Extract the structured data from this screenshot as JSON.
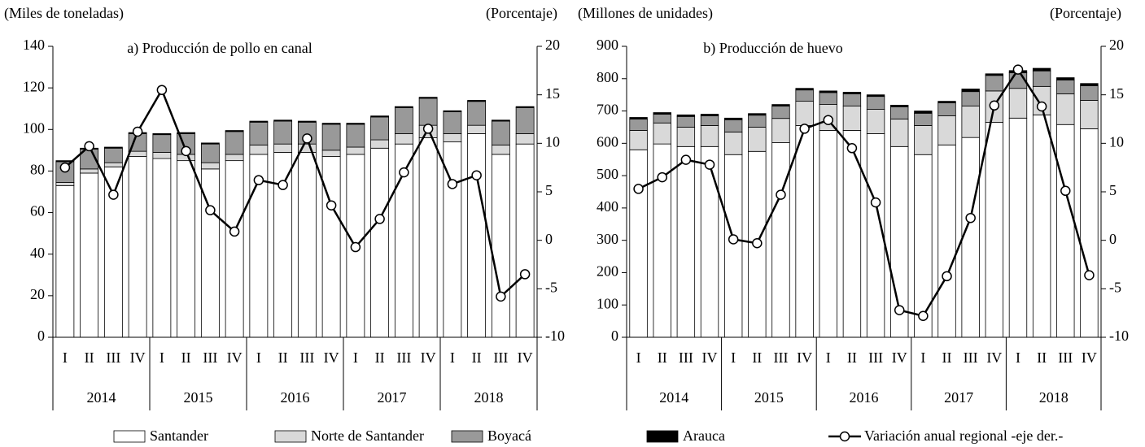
{
  "chart_data": [
    {
      "type": "bar",
      "stacked": true,
      "title": "a) Producción de pollo en canal",
      "y_label": "(Miles de toneladas)",
      "y2_label": "(Porcentaje)",
      "categories": [
        "I",
        "II",
        "III",
        "IV",
        "I",
        "II",
        "III",
        "IV",
        "I",
        "II",
        "III",
        "IV",
        "I",
        "II",
        "III",
        "IV",
        "I",
        "II",
        "III",
        "IV"
      ],
      "groups": [
        "2014",
        "2015",
        "2016",
        "2017",
        "2018"
      ],
      "ylim": [
        0,
        140
      ],
      "yticks": [
        0,
        20,
        40,
        60,
        80,
        100,
        120,
        140
      ],
      "y2lim": [
        -10,
        20
      ],
      "y2ticks": [
        -10,
        -5,
        0,
        5,
        10,
        15,
        20
      ],
      "series": [
        {
          "name": "Santander",
          "color": "#ffffff",
          "values": [
            73,
            79,
            82,
            87,
            86,
            85,
            81,
            85,
            88,
            89,
            89,
            87,
            88,
            91,
            93,
            96,
            94,
            98,
            88,
            93
          ]
        },
        {
          "name": "Norte de Santander",
          "color": "#d9d9d9",
          "values": [
            1.5,
            2,
            2,
            2.5,
            3,
            3,
            3,
            3,
            4.5,
            4,
            4,
            3,
            3.5,
            4,
            5,
            6,
            4,
            4,
            4.5,
            5
          ]
        },
        {
          "name": "Boyacá",
          "color": "#999999",
          "values": [
            10,
            9.5,
            7,
            8.5,
            8.5,
            10,
            9,
            11,
            11,
            11,
            10.5,
            12.5,
            11,
            11,
            12.5,
            13,
            10.5,
            11.5,
            11.5,
            12.5
          ]
        },
        {
          "name": "Arauca",
          "color": "#000000",
          "values": [
            0.5,
            0.5,
            0.5,
            0.5,
            0.5,
            0.5,
            0.5,
            0.5,
            0.5,
            0.5,
            0.5,
            0.5,
            0.5,
            0.5,
            0.5,
            0.5,
            0.5,
            0.5,
            0.5,
            0.5
          ]
        },
        {
          "name": "Variación anual regional -eje der.-",
          "type": "line",
          "axis": "y2",
          "color": "#000000",
          "values": [
            7.5,
            9.7,
            4.7,
            11.2,
            15.5,
            9.2,
            3.1,
            0.9,
            6.2,
            5.7,
            10.5,
            3.6,
            -0.7,
            2.2,
            7,
            11.5,
            5.8,
            6.7,
            -5.8,
            -3.5
          ]
        }
      ]
    },
    {
      "type": "bar",
      "stacked": true,
      "title": "b) Producción de huevo",
      "y_label": "(Millones de unidades)",
      "y2_label": "(Porcentaje)",
      "categories": [
        "I",
        "II",
        "III",
        "IV",
        "I",
        "II",
        "III",
        "IV",
        "I",
        "II",
        "III",
        "IV",
        "I",
        "II",
        "III",
        "IV",
        "I",
        "II",
        "III",
        "IV"
      ],
      "groups": [
        "2014",
        "2015",
        "2016",
        "2017",
        "2018"
      ],
      "ylim": [
        0,
        900
      ],
      "yticks": [
        0,
        100,
        200,
        300,
        400,
        500,
        600,
        700,
        800,
        900
      ],
      "y2lim": [
        -10,
        20
      ],
      "y2ticks": [
        -10,
        -5,
        0,
        5,
        10,
        15,
        20
      ],
      "series": [
        {
          "name": "Santander",
          "color": "#ffffff",
          "values": [
            580,
            598,
            590,
            590,
            565,
            575,
            602,
            655,
            640,
            640,
            630,
            590,
            565,
            595,
            618,
            665,
            678,
            688,
            658,
            645
          ]
        },
        {
          "name": "Norte de Santander",
          "color": "#d9d9d9",
          "values": [
            60,
            65,
            60,
            65,
            70,
            75,
            75,
            75,
            80,
            75,
            75,
            85,
            90,
            90,
            97,
            97,
            92,
            88,
            95,
            88
          ]
        },
        {
          "name": "Boyacá",
          "color": "#999999",
          "values": [
            35,
            27,
            33,
            30,
            38,
            37,
            38,
            35,
            37,
            38,
            40,
            38,
            38,
            40,
            45,
            48,
            48,
            48,
            43,
            45
          ]
        },
        {
          "name": "Arauca",
          "color": "#000000",
          "values": [
            5,
            5,
            5,
            5,
            5,
            5,
            5,
            5,
            5,
            5,
            5,
            5,
            7,
            5,
            8,
            5,
            7,
            8,
            7,
            7
          ]
        },
        {
          "name": "Variación anual regional -eje der.-",
          "type": "line",
          "axis": "y2",
          "color": "#000000",
          "values": [
            5.3,
            6.5,
            8.3,
            7.8,
            0.1,
            -0.3,
            4.7,
            11.5,
            12.4,
            9.5,
            3.9,
            -7.2,
            -7.8,
            -3.7,
            2.3,
            13.9,
            17.6,
            13.8,
            5.1,
            -3.6
          ]
        }
      ]
    }
  ]
}
